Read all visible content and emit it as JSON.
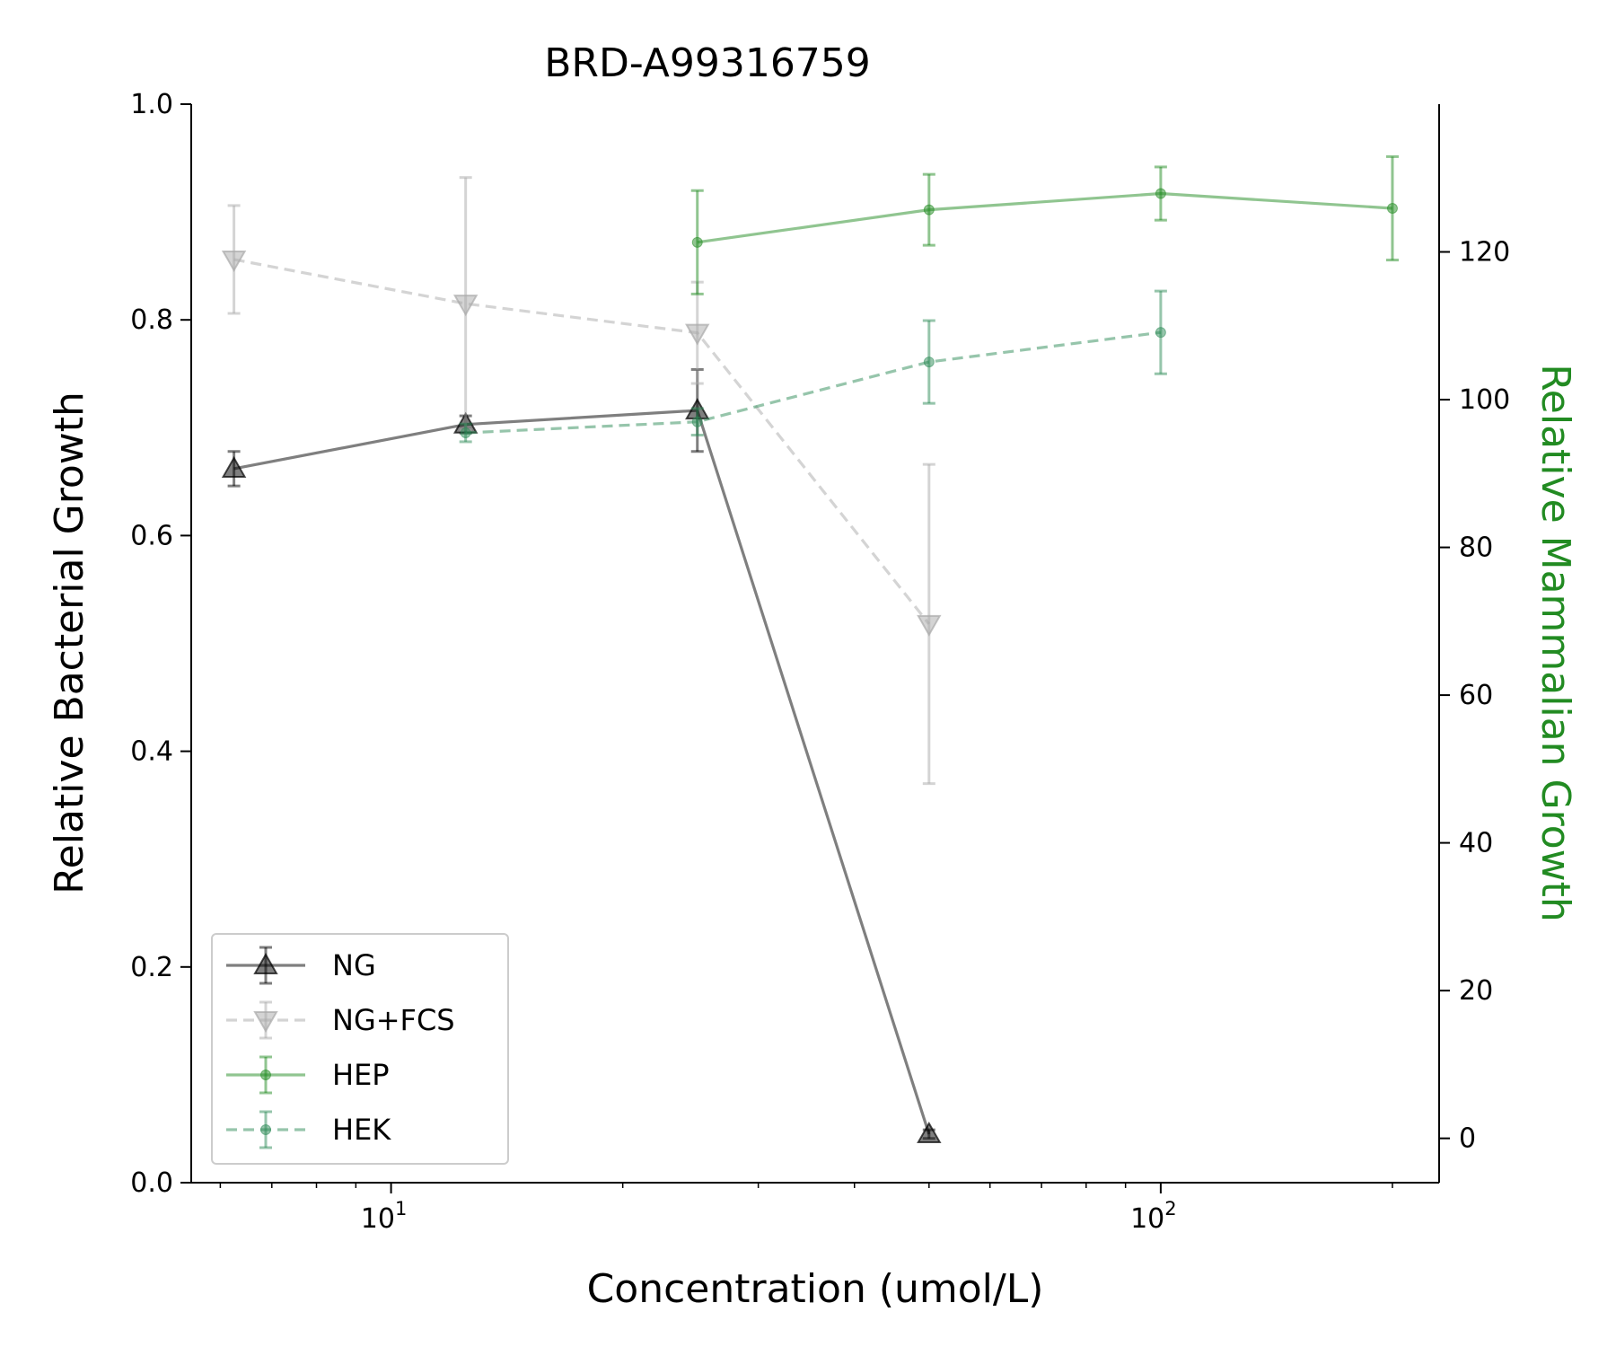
{
  "chart_data": {
    "type": "line",
    "title": "BRD-A99316759",
    "xlabel": "Concentration (umol/L)",
    "ylabel": "Relative Bacterial Growth",
    "y2label": "Relative Mammalian Growth",
    "xscale": "log",
    "xlim": [
      5.5,
      230
    ],
    "ylim": [
      0,
      1.0
    ],
    "y2lim": [
      -6,
      140
    ],
    "x_ticks": [
      {
        "value": 10,
        "base": "10",
        "exp": "1"
      },
      {
        "value": 100,
        "base": "10",
        "exp": "2"
      }
    ],
    "y_ticks": [
      "0.0",
      "0.2",
      "0.4",
      "0.6",
      "0.8",
      "1.0"
    ],
    "y2_ticks": [
      "0",
      "20",
      "40",
      "60",
      "80",
      "100",
      "120"
    ],
    "legend_position": "lower-left",
    "colors": {
      "y2_axis_label": "#228b22"
    },
    "series": [
      {
        "name": "NG",
        "axis": "left",
        "color": "#000000",
        "marker": "triangle-up",
        "linestyle": "solid",
        "x": [
          6.25,
          12.5,
          25,
          50
        ],
        "y": [
          0.662,
          0.703,
          0.716,
          0.045
        ],
        "err": [
          0.016,
          0.008,
          0.038,
          0.004
        ]
      },
      {
        "name": "NG+FCS",
        "axis": "left",
        "color": "#a9a9a9",
        "marker": "triangle-down",
        "linestyle": "dashed",
        "x": [
          6.25,
          12.5,
          25,
          50
        ],
        "y": [
          0.856,
          0.815,
          0.788,
          0.518
        ],
        "err": [
          0.05,
          0.117,
          0.047,
          0.148
        ]
      },
      {
        "name": "HEP",
        "axis": "right",
        "color": "#228b22",
        "marker": "circle",
        "linestyle": "solid",
        "x": [
          25,
          50,
          100,
          200
        ],
        "y": [
          121.3,
          125.7,
          127.9,
          125.9
        ],
        "err": [
          7,
          4.8,
          3.6,
          7
        ]
      },
      {
        "name": "HEK",
        "axis": "right",
        "color": "#2e8b57",
        "marker": "circle",
        "linestyle": "dashed",
        "x": [
          12.5,
          25,
          50,
          100
        ],
        "y": [
          95.5,
          97.0,
          105.1,
          109.1
        ],
        "err": [
          1.2,
          1.8,
          5.6,
          5.6
        ]
      }
    ]
  }
}
